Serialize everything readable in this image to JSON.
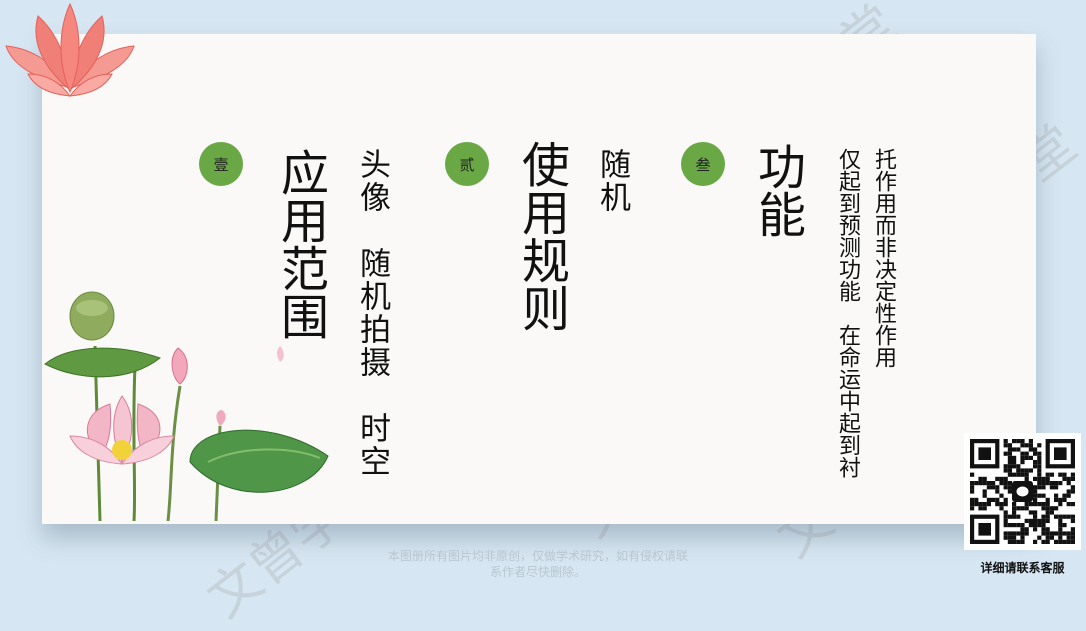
{
  "watermark_text": "文曾学堂",
  "sections": [
    {
      "badge": "壹",
      "title": "应用范围",
      "body": "头像　随机拍摄　时空"
    },
    {
      "badge": "贰",
      "title": "使用规则",
      "body": "随机"
    },
    {
      "badge": "叁",
      "title": "功能",
      "body_col1": "托作用而非决定性作用",
      "body_col2": "仅起到预测功能　在命运中起到衬"
    }
  ],
  "footer": {
    "line1": "本图册所有图片均非原创，仅做学术研究，如有侵权请联",
    "line2": "系作者尽快删除。"
  },
  "qr": {
    "caption": "详细请联系客服",
    "icon": "wechat-icon"
  },
  "colors": {
    "badge": "#6aa846",
    "background": "#d6e6f2",
    "card": "#faf9f7"
  }
}
